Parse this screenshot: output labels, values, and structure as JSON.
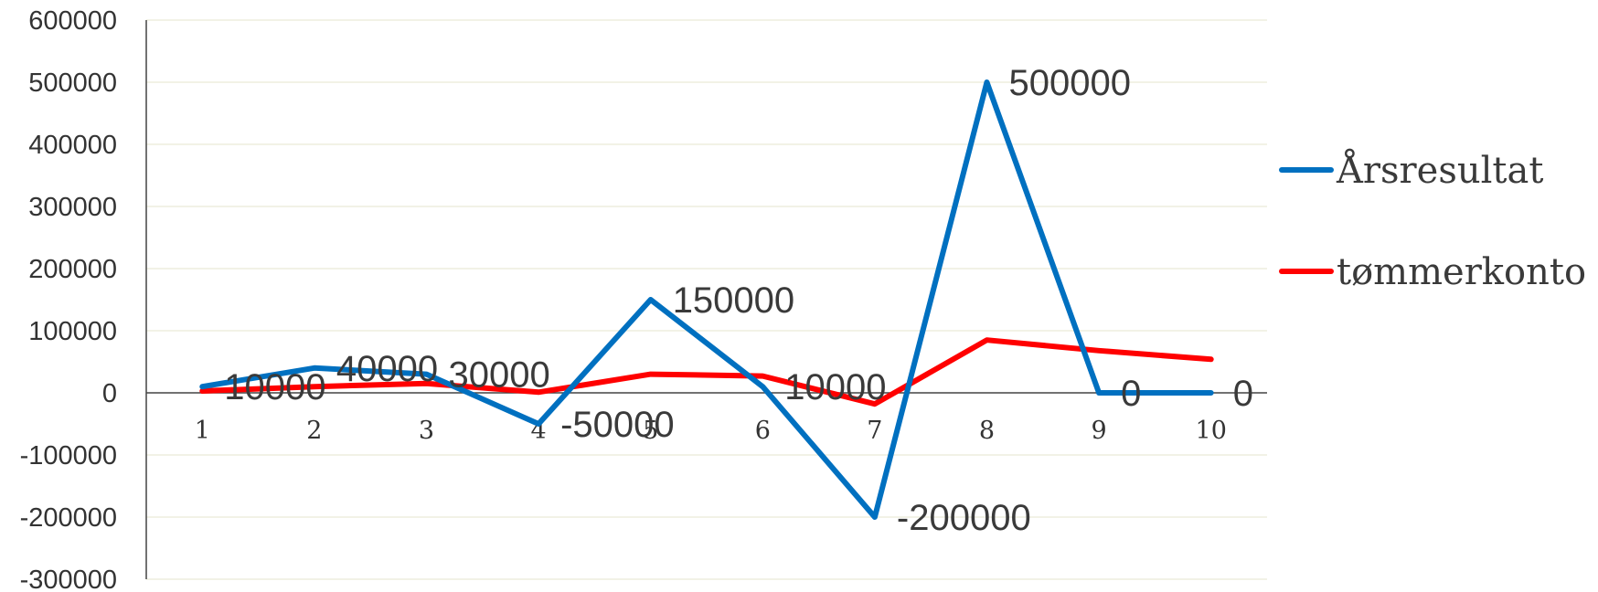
{
  "chart_data": {
    "type": "line",
    "categories": [
      "1",
      "2",
      "3",
      "4",
      "5",
      "6",
      "7",
      "8",
      "9",
      "10"
    ],
    "ylim": [
      -300000,
      600000
    ],
    "yticks": [
      "600000",
      "500000",
      "400000",
      "300000",
      "200000",
      "100000",
      "0",
      "-100000",
      "-200000",
      "-300000"
    ],
    "grid": true,
    "legend_position": "right",
    "series": [
      {
        "name": "Årsresultat",
        "color": "#0070c0",
        "values": [
          10000,
          40000,
          30000,
          -50000,
          150000,
          10000,
          -200000,
          500000,
          0,
          0
        ],
        "data_labels": [
          "10000",
          "40000",
          "30000",
          "-50000",
          "150000",
          "10000",
          "-200000",
          "500000",
          "0",
          "0"
        ]
      },
      {
        "name": "tømmerkonto",
        "color": "#ff0000",
        "values": [
          3000,
          10000,
          15000,
          1000,
          30000,
          27000,
          -18000,
          85000,
          68000,
          54000
        ]
      }
    ]
  }
}
